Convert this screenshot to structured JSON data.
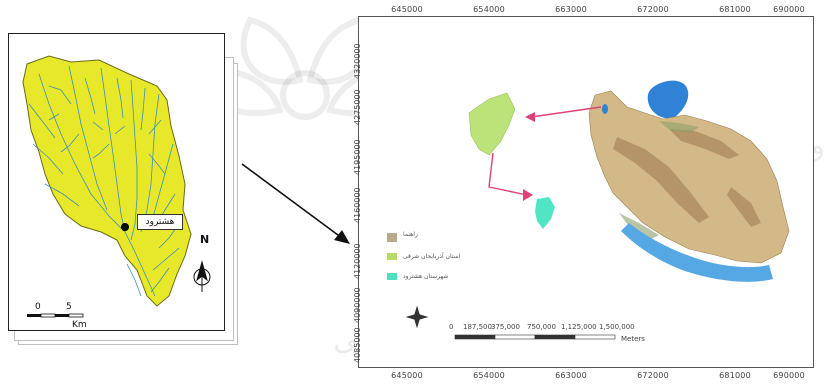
{
  "left_map": {
    "city_label": "هشترود",
    "north_label": "N",
    "scale": {
      "zero": "0",
      "five": "5",
      "unit": "Km"
    }
  },
  "right_map": {
    "x_ticks_top": [
      "645000",
      "654000",
      "663000",
      "672000",
      "681000",
      "690000"
    ],
    "x_ticks_bottom": [
      "645000",
      "654000",
      "663000",
      "672000",
      "681000",
      "690000"
    ],
    "y_ticks": [
      "4320000",
      "4275000",
      "4195000",
      "4160000",
      "4120000",
      "4090000",
      "4085000"
    ],
    "legend": [
      {
        "label": "راهنما",
        "color": "#b9a98a"
      },
      {
        "label": "استان آذربایجان شرقی",
        "color": "#b7d96a"
      },
      {
        "label": "شهرستان هشترود",
        "color": "#4fe0c2"
      }
    ],
    "scalebar_labels": [
      "0",
      "187,500",
      "375,000",
      "750,000",
      "1,125,000",
      "1,500,000"
    ],
    "scalebar_unit": "Meters"
  },
  "colors": {
    "basin_fill": "#e8e82a",
    "streams": "#3d8fb5",
    "province_fill": "#bce37a",
    "county_fill": "#50e6c5",
    "arrow_red": "#e0407a",
    "iran_land": "#d4b988",
    "sea": "#2f82d6"
  }
}
